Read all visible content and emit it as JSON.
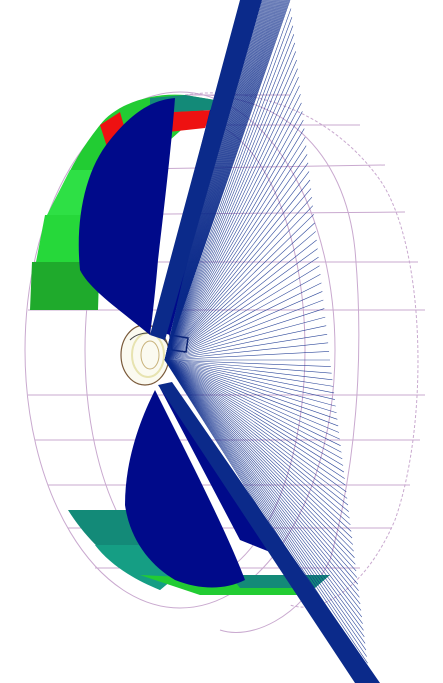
{
  "figure": {
    "kind": "3D wireframe/surface render",
    "colors": {
      "background": "#ffffff",
      "blade_fill": "#000a8a",
      "blade_lines": "#0b2a8a",
      "ring_green": "#22cc33",
      "ring_red": "#ee1111",
      "ring_teal": "#138a78",
      "wireframe": "#c9a9cf",
      "hub_outline": "#7a5a3a",
      "hub_highlight": "#e7e3b0"
    },
    "description": ""
  }
}
